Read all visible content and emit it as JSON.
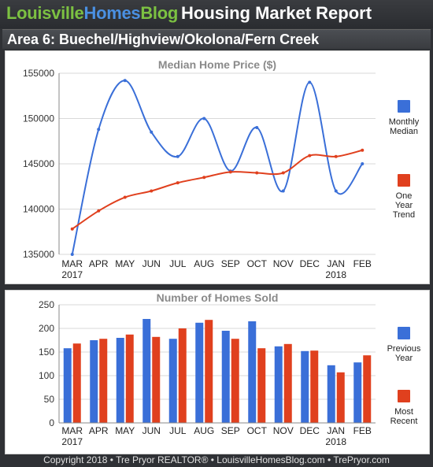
{
  "header": {
    "brand_part1": "Louisville",
    "brand_part2": "Homes",
    "brand_part3": "Blog",
    "report_title": "Housing Market Report"
  },
  "area_title": "Area 6: Buechel/Highview/Okolona/Fern Creek",
  "footer": "Copyright  2018  •  Tre Pryor REALTOR®  •  LouisvilleHomesBlog.com  •  TrePryor.com",
  "colors": {
    "blue": "#3a6fd8",
    "red": "#e0401e",
    "background": "#2f3135",
    "brand_green": "#7cc142",
    "brand_blue": "#4a90e2"
  },
  "chart_data": [
    {
      "type": "line",
      "title": "Median Home Price ($)",
      "categories": [
        "MAR",
        "APR",
        "MAY",
        "JUN",
        "JUL",
        "AUG",
        "SEP",
        "OCT",
        "NOV",
        "DEC",
        "JAN",
        "FEB"
      ],
      "year_labels": {
        "start": "2017",
        "end": "2018"
      },
      "ylim": [
        135000,
        155000
      ],
      "yticks": [
        "135000",
        "140000",
        "145000",
        "150000",
        "155000"
      ],
      "grid": true,
      "legend_position": "right",
      "series": [
        {
          "name": "Monthly Median",
          "color": "#3a6fd8",
          "values": [
            135000,
            148800,
            154200,
            148500,
            145800,
            150000,
            144200,
            149000,
            142000,
            154000,
            142000,
            145000
          ]
        },
        {
          "name": "One Year Trend",
          "color": "#e0401e",
          "values": [
            137800,
            139800,
            141300,
            142000,
            142900,
            143500,
            144100,
            144000,
            144000,
            145900,
            145800,
            146500
          ]
        }
      ],
      "legend_labels": [
        [
          "Monthly",
          "Median"
        ],
        [
          "One",
          "Year",
          "Trend"
        ]
      ]
    },
    {
      "type": "bar",
      "title": "Number of Homes Sold",
      "categories": [
        "MAR",
        "APR",
        "MAY",
        "JUN",
        "JUL",
        "AUG",
        "SEP",
        "OCT",
        "NOV",
        "DEC",
        "JAN",
        "FEB"
      ],
      "year_labels": {
        "start": "2017",
        "end": "2018"
      },
      "ylim": [
        0,
        250
      ],
      "yticks": [
        "0",
        "50",
        "100",
        "150",
        "200",
        "250"
      ],
      "grid": true,
      "legend_position": "right",
      "series": [
        {
          "name": "Previous Year",
          "color": "#3a6fd8",
          "values": [
            158,
            175,
            180,
            220,
            178,
            212,
            195,
            215,
            162,
            152,
            122,
            128
          ]
        },
        {
          "name": "Most Recent",
          "color": "#e0401e",
          "values": [
            168,
            178,
            187,
            182,
            200,
            218,
            178,
            158,
            167,
            153,
            107,
            143
          ]
        }
      ],
      "legend_labels": [
        [
          "Previous",
          "Year"
        ],
        [
          "Most",
          "Recent"
        ]
      ]
    }
  ]
}
